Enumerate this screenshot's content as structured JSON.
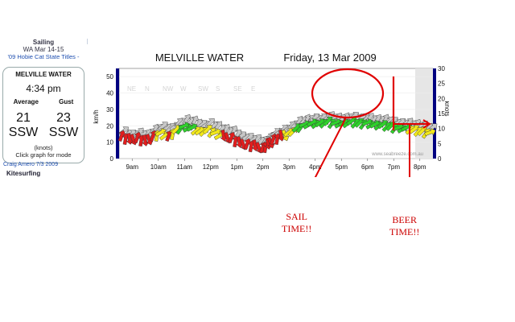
{
  "sidebar": {
    "top_label": "Sailing",
    "top_date": "WA Mar 14-15",
    "event_link": "'09 Hobie Cat State Titles -",
    "station_name": "MELVILLE WATER",
    "time": "4:34 pm",
    "avg_label": "Average",
    "gust_label": "Gust",
    "avg_speed": "21",
    "gust_speed": "23",
    "avg_dir": "SSW",
    "gust_dir": "SSW",
    "units": "(knots)",
    "hint": "Click graph for mode",
    "below_link": "Craig Amero 7/3 2009",
    "section": "Kitesurfing"
  },
  "chart": {
    "station": "MELVILLE WATER",
    "date": "Friday, 13 Mar 2009",
    "watermark": "www.seabreeze.com.au"
  },
  "annotations": {
    "sail": [
      "SAIL",
      "TIME!!"
    ],
    "beer": [
      "BEER",
      "TIME!!"
    ]
  },
  "colors": {
    "annotation": "#e00000",
    "red": "#e21d1d",
    "yellow": "#f2e81a",
    "green": "#2fd12b",
    "gust": "#c8c8c8"
  },
  "chart_data": {
    "type": "line",
    "x_ticks": [
      "9am",
      "10am",
      "11am",
      "12pm",
      "1pm",
      "2pm",
      "3pm",
      "4pm",
      "5pm",
      "6pm",
      "7pm",
      "8pm"
    ],
    "x_range": [
      8.5,
      20.5
    ],
    "y_left_label": "km/h",
    "y_left_ticks": [
      "0",
      "10",
      "20",
      "30",
      "40",
      "50"
    ],
    "y_left_range": [
      0,
      55
    ],
    "y_right_label": "knots",
    "y_right_ticks": [
      "0",
      "5",
      "10",
      "15",
      "20",
      "25",
      "30"
    ],
    "y_right_range": [
      0,
      30
    ],
    "direction_labels": [
      "NE",
      "N",
      "NW",
      "W",
      "SW",
      "S",
      "SE",
      "E"
    ],
    "series": [
      {
        "values": [
          [
            8.6,
            14
          ],
          [
            8.9,
            12
          ],
          [
            9.2,
            13
          ],
          [
            9.5,
            11
          ],
          [
            9.8,
            14
          ],
          [
            10.1,
            16
          ],
          [
            10.4,
            14
          ],
          [
            10.7,
            18
          ],
          [
            11.0,
            20
          ],
          [
            11.3,
            19
          ],
          [
            11.6,
            17
          ],
          [
            11.9,
            18
          ],
          [
            12.2,
            16
          ],
          [
            12.5,
            14
          ],
          [
            12.8,
            13
          ],
          [
            13.1,
            10
          ],
          [
            13.4,
            9
          ],
          [
            13.7,
            8
          ],
          [
            14.0,
            7
          ],
          [
            14.2,
            9
          ],
          [
            14.4,
            12
          ],
          [
            14.7,
            14
          ],
          [
            15.0,
            16
          ],
          [
            15.3,
            19
          ],
          [
            15.6,
            21
          ],
          [
            15.9,
            22
          ],
          [
            16.2,
            22
          ],
          [
            16.5,
            23
          ],
          [
            16.8,
            22
          ],
          [
            17.1,
            22
          ],
          [
            17.4,
            23
          ],
          [
            17.7,
            22
          ],
          [
            18.0,
            22
          ],
          [
            18.3,
            21
          ],
          [
            18.6,
            21
          ],
          [
            18.9,
            20
          ],
          [
            19.2,
            19
          ],
          [
            19.5,
            19
          ],
          [
            19.8,
            18
          ],
          [
            20.1,
            17
          ],
          [
            20.4,
            16
          ]
        ]
      },
      {
        "values": [
          [
            8.6,
            17
          ],
          [
            8.9,
            15
          ],
          [
            9.2,
            16
          ],
          [
            9.5,
            15
          ],
          [
            9.8,
            18
          ],
          [
            10.1,
            20
          ],
          [
            10.4,
            19
          ],
          [
            10.7,
            22
          ],
          [
            11.0,
            24
          ],
          [
            11.3,
            23
          ],
          [
            11.6,
            21
          ],
          [
            11.9,
            22
          ],
          [
            12.2,
            20
          ],
          [
            12.5,
            18
          ],
          [
            12.8,
            17
          ],
          [
            13.1,
            14
          ],
          [
            13.4,
            13
          ],
          [
            13.7,
            12
          ],
          [
            14.0,
            11
          ],
          [
            14.2,
            13
          ],
          [
            14.4,
            16
          ],
          [
            14.7,
            18
          ],
          [
            15.0,
            20
          ],
          [
            15.3,
            23
          ],
          [
            15.6,
            24
          ],
          [
            15.9,
            25
          ],
          [
            16.2,
            25
          ],
          [
            16.5,
            26
          ],
          [
            16.8,
            25
          ],
          [
            17.1,
            25
          ],
          [
            17.4,
            26
          ],
          [
            17.7,
            25
          ],
          [
            18.0,
            25
          ],
          [
            18.3,
            24
          ],
          [
            18.6,
            24
          ],
          [
            18.9,
            23
          ],
          [
            19.2,
            22
          ],
          [
            19.5,
            22
          ],
          [
            19.8,
            21
          ],
          [
            20.1,
            20
          ],
          [
            20.4,
            19
          ]
        ]
      }
    ]
  }
}
